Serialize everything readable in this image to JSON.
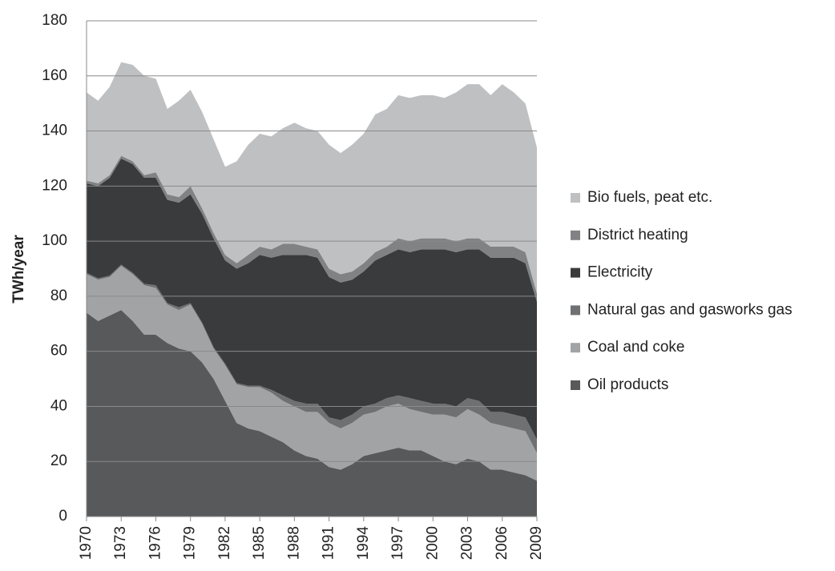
{
  "chart_data": {
    "type": "stacked-area",
    "y_label": "TWh/year",
    "x": [
      1970,
      1971,
      1972,
      1973,
      1974,
      1975,
      1976,
      1977,
      1978,
      1979,
      1980,
      1981,
      1982,
      1983,
      1984,
      1985,
      1986,
      1987,
      1988,
      1989,
      1990,
      1991,
      1992,
      1993,
      1994,
      1995,
      1996,
      1997,
      1998,
      1999,
      2000,
      2001,
      2002,
      2003,
      2004,
      2005,
      2006,
      2007,
      2008,
      2009
    ],
    "xlim": [
      1970,
      2009
    ],
    "xticks": [
      1970,
      1973,
      1976,
      1979,
      1982,
      1985,
      1988,
      1991,
      1994,
      1997,
      2000,
      2003,
      2006,
      2009
    ],
    "ylim": [
      0,
      180
    ],
    "yticks": [
      0,
      20,
      40,
      60,
      80,
      100,
      120,
      140,
      160,
      180
    ],
    "grid": true,
    "legend": "right",
    "series": [
      {
        "name": "Oil products",
        "color": "#58595b",
        "values": [
          74,
          71,
          73,
          75,
          71,
          66,
          66,
          63,
          61,
          60,
          56,
          50,
          42,
          34,
          32,
          31,
          29,
          27,
          24,
          22,
          21,
          18,
          17,
          19,
          22,
          23,
          24,
          25,
          24,
          24,
          22,
          20,
          19,
          21,
          20,
          17,
          17,
          16,
          15,
          13
        ]
      },
      {
        "name": "Coal and coke",
        "color": "#a2a3a5",
        "values": [
          14,
          15,
          14,
          16,
          17,
          18,
          17,
          14,
          14,
          17,
          14,
          11,
          13,
          14,
          15,
          16,
          16,
          15,
          16,
          16,
          17,
          16,
          15,
          15,
          15,
          15,
          16,
          16,
          15,
          14,
          15,
          17,
          17,
          18,
          17,
          17,
          16,
          16,
          16,
          10
        ]
      },
      {
        "name": "Natural gas and gasworks gas",
        "color": "#6f7072",
        "values": [
          0.5,
          0.5,
          0.5,
          0.5,
          0.5,
          0.5,
          1,
          0.5,
          1,
          0.5,
          0.5,
          0.5,
          0.5,
          0.5,
          0.5,
          0.5,
          1,
          2,
          2,
          3,
          3,
          2,
          3,
          3,
          3,
          3,
          3,
          3,
          4,
          4,
          4,
          4,
          4,
          4,
          5,
          4,
          5,
          5,
          5,
          5
        ]
      },
      {
        "name": "Electricity",
        "color": "#3a3b3d",
        "values": [
          32.5,
          33.5,
          35.5,
          38.5,
          39.5,
          38.5,
          39,
          37.5,
          38,
          39.5,
          39.5,
          39.5,
          37.5,
          41.5,
          44.5,
          47.5,
          48,
          51,
          53,
          54,
          53,
          51,
          50,
          49,
          49,
          52,
          52,
          53,
          53,
          55,
          56,
          56,
          56,
          54,
          55,
          56,
          56,
          57,
          56,
          50
        ]
      },
      {
        "name": "District heating",
        "color": "#818284",
        "values": [
          1,
          1,
          1,
          1,
          1,
          1,
          2,
          2,
          2,
          3,
          2,
          2,
          2,
          2,
          3,
          3,
          3,
          4,
          4,
          3,
          3,
          3,
          3,
          3,
          3,
          3,
          3,
          4,
          4,
          4,
          4,
          4,
          4,
          4,
          4,
          4,
          4,
          4,
          4,
          3
        ]
      },
      {
        "name": "Bio fuels, peat etc.",
        "color": "#bfc0c2",
        "values": [
          32,
          30,
          32,
          34,
          35,
          36,
          34,
          31,
          35,
          35,
          35,
          34,
          32,
          37,
          40,
          41,
          41,
          42,
          44,
          43,
          43,
          45,
          44,
          46,
          47,
          50,
          50,
          52,
          52,
          52,
          52,
          51,
          54,
          56,
          56,
          55,
          59,
          56,
          54,
          53
        ]
      }
    ]
  }
}
